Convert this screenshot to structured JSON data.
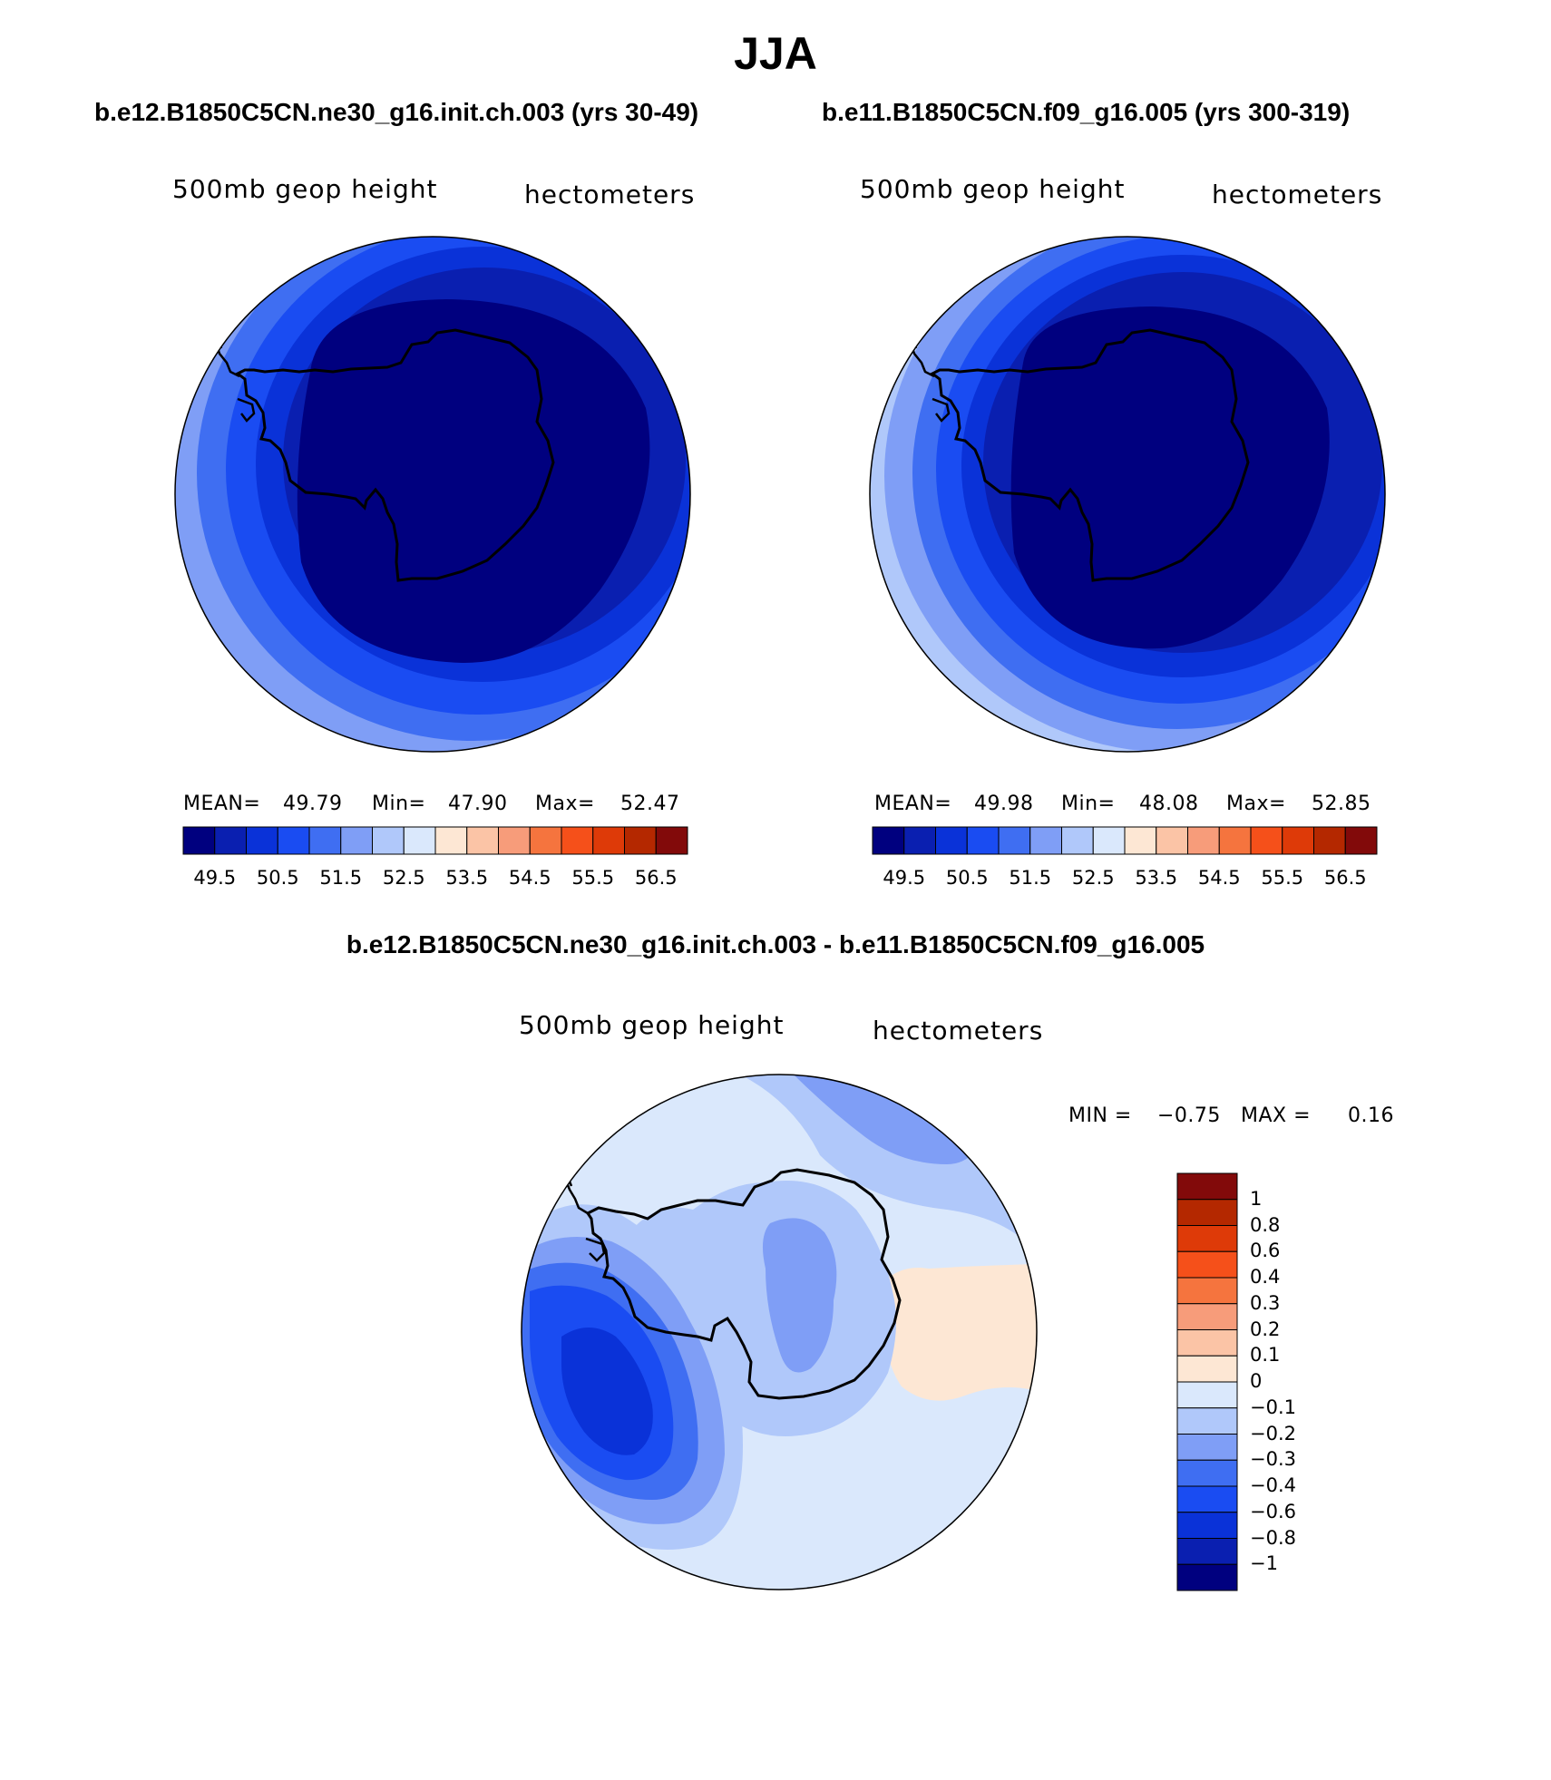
{
  "figure": {
    "season": "JJA",
    "diff_title": "b.e12.B1850C5CN.ne30_g16.init.ch.003 - b.e11.B1850C5CN.f09_g16.005"
  },
  "panels": [
    {
      "title": "b.e12.B1850C5CN.ne30_g16.init.ch.003 (yrs 30-49)",
      "variable": "500mb geop height",
      "units": "hectometers",
      "mean_label": "MEAN=",
      "mean": "49.79",
      "min_label": "Min=",
      "min": "47.90",
      "max_label": "Max=",
      "max": "52.47"
    },
    {
      "title": "b.e11.B1850C5CN.f09_g16.005 (yrs 300-319)",
      "variable": "500mb geop height",
      "units": "hectometers",
      "mean_label": "MEAN=",
      "mean": "49.98",
      "min_label": "Min=",
      "min": "48.08",
      "max_label": "Max=",
      "max": "52.85"
    }
  ],
  "diff_panel": {
    "variable": "500mb geop height",
    "units": "hectometers",
    "min_label": "MIN =",
    "min": "−0.75",
    "max_label": "MAX =",
    "max": "0.16"
  },
  "colorbar_abs": {
    "tick_labels": [
      "49.5",
      "50.5",
      "51.5",
      "52.5",
      "53.5",
      "54.5",
      "55.5",
      "56.5"
    ],
    "colors": [
      "#00007f",
      "#0a1fb0",
      "#0a32d8",
      "#1a4cf2",
      "#3f6ef2",
      "#7f9ef6",
      "#b0c8fa",
      "#dae8fc",
      "#fde7d4",
      "#fbc4a6",
      "#f79c7a",
      "#f5743e",
      "#f5501a",
      "#de3a08",
      "#b42800",
      "#820a0a"
    ]
  },
  "colorbar_diff": {
    "tick_labels": [
      "1",
      "0.8",
      "0.6",
      "0.4",
      "0.3",
      "0.2",
      "0.1",
      "0",
      "−0.1",
      "−0.2",
      "−0.3",
      "−0.4",
      "−0.6",
      "−0.8",
      "−1"
    ],
    "colors": [
      "#820a0a",
      "#b42800",
      "#de3a08",
      "#f5501a",
      "#f5743e",
      "#f79c7a",
      "#fbc4a6",
      "#fde7d4",
      "#dae8fc",
      "#b0c8fa",
      "#7f9ef6",
      "#3f6ef2",
      "#1a4cf2",
      "#0a32d8",
      "#0a1fb0",
      "#00007f"
    ]
  },
  "map_colors": {
    "lvl_dark": "#00007f",
    "lvl_2": "#0a1fb0",
    "lvl_3": "#0a32d8",
    "lvl_4": "#1a4cf2",
    "lvl_5": "#3f6ef2",
    "lvl_6": "#7f9ef6",
    "lvl_7": "#b0c8fa",
    "lvl_8": "#dae8fc",
    "pos_1": "#fde7d4"
  }
}
